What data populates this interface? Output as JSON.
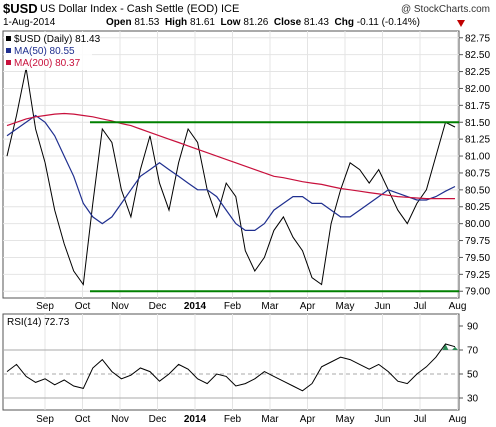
{
  "header": {
    "ticker": "$USD",
    "description": "US Dollar Index - Cash Settle (EOD)",
    "exchange": "ICE",
    "credit": "@ StockCharts.com",
    "date": "1-Aug-2014",
    "open_label": "Open",
    "open": "81.53",
    "high_label": "High",
    "high": "81.61",
    "low": "81.26",
    "close_label": "Close",
    "close": "81.43",
    "chg_label": "Chg",
    "chg": "-0.11 (-0.14%)"
  },
  "legend": [
    {
      "text": "$USD (Daily) 81.43",
      "color": "#000000"
    },
    {
      "text": "MA(50) 80.55",
      "color": "#1f2f8f"
    },
    {
      "text": "MA(200) 80.37",
      "color": "#c8103c"
    }
  ],
  "rsi_label": "RSI(14) 72.73",
  "colors": {
    "price": "#000000",
    "ma50": "#1f2f8f",
    "ma200": "#c8103c",
    "support_resistance": "#008000",
    "rsi_line": "#000000",
    "rsi_fill": "#2e8b57",
    "rsi_band": "#aaaaaa"
  },
  "chart_data": [
    {
      "type": "line",
      "ylim": [
        78.9,
        82.85
      ],
      "y_ticks": [
        "82.75",
        "82.50",
        "82.25",
        "82.00",
        "81.75",
        "81.50",
        "81.25",
        "81.00",
        "80.75",
        "80.50",
        "80.25",
        "80.00",
        "79.75",
        "79.50",
        "79.25",
        "79.00"
      ],
      "x_ticks": [
        "Sep",
        "Oct",
        "Nov",
        "Dec",
        "2014",
        "Feb",
        "Mar",
        "Apr",
        "May",
        "Jun",
        "Jul",
        "Aug"
      ],
      "series": [
        {
          "name": "$USD (Daily) 81.43",
          "values": [
            81.0,
            81.6,
            82.3,
            81.4,
            80.9,
            80.2,
            79.7,
            79.3,
            79.1,
            80.3,
            81.4,
            81.2,
            80.5,
            80.1,
            80.8,
            81.3,
            80.6,
            80.2,
            80.9,
            81.4,
            81.2,
            80.5,
            80.1,
            80.6,
            80.4,
            79.6,
            79.3,
            79.5,
            79.9,
            80.1,
            79.8,
            79.6,
            79.2,
            79.1,
            80.0,
            80.5,
            80.9,
            80.8,
            80.6,
            80.8,
            80.5,
            80.2,
            80.0,
            80.3,
            80.5,
            81.0,
            81.5,
            81.43
          ]
        },
        {
          "name": "MA(50) 80.55",
          "values": [
            81.3,
            81.4,
            81.5,
            81.6,
            81.5,
            81.3,
            81.0,
            80.7,
            80.3,
            80.1,
            80.0,
            80.1,
            80.3,
            80.5,
            80.7,
            80.8,
            80.9,
            80.8,
            80.7,
            80.6,
            80.5,
            80.5,
            80.4,
            80.2,
            80.0,
            79.9,
            79.9,
            80.0,
            80.2,
            80.3,
            80.4,
            80.4,
            80.3,
            80.3,
            80.2,
            80.1,
            80.1,
            80.2,
            80.3,
            80.4,
            80.5,
            80.45,
            80.4,
            80.35,
            80.35,
            80.4,
            80.48,
            80.55
          ]
        },
        {
          "name": "MA(200) 80.37",
          "values": [
            81.45,
            81.5,
            81.55,
            81.58,
            81.6,
            81.62,
            81.63,
            81.62,
            81.6,
            81.58,
            81.55,
            81.52,
            81.48,
            81.45,
            81.4,
            81.35,
            81.3,
            81.25,
            81.2,
            81.15,
            81.1,
            81.05,
            81.0,
            80.95,
            80.9,
            80.85,
            80.8,
            80.75,
            80.7,
            80.68,
            80.65,
            80.62,
            80.6,
            80.58,
            80.55,
            80.52,
            80.5,
            80.48,
            80.46,
            80.44,
            80.42,
            80.4,
            80.39,
            80.38,
            80.37,
            80.37,
            80.37,
            80.37
          ]
        }
      ],
      "hlines": [
        81.5,
        79.0
      ]
    },
    {
      "type": "line",
      "ylim": [
        20,
        100
      ],
      "y_ticks": [
        "90",
        "70",
        "50",
        "30",
        "10"
      ],
      "x_ticks": [
        "Sep",
        "Oct",
        "Nov",
        "Dec",
        "2014",
        "Feb",
        "Mar",
        "Apr",
        "May",
        "Jun",
        "Jul",
        "Aug"
      ],
      "series": [
        {
          "name": "RSI(14) 72.73",
          "values": [
            52,
            58,
            48,
            43,
            46,
            41,
            45,
            40,
            38,
            55,
            62,
            52,
            46,
            49,
            55,
            52,
            44,
            50,
            58,
            54,
            46,
            42,
            50,
            48,
            40,
            42,
            46,
            52,
            48,
            44,
            40,
            36,
            42,
            56,
            60,
            64,
            62,
            58,
            54,
            58,
            52,
            44,
            42,
            50,
            56,
            64,
            75,
            72.73
          ]
        }
      ],
      "hlines": [
        70,
        50,
        30
      ]
    }
  ]
}
